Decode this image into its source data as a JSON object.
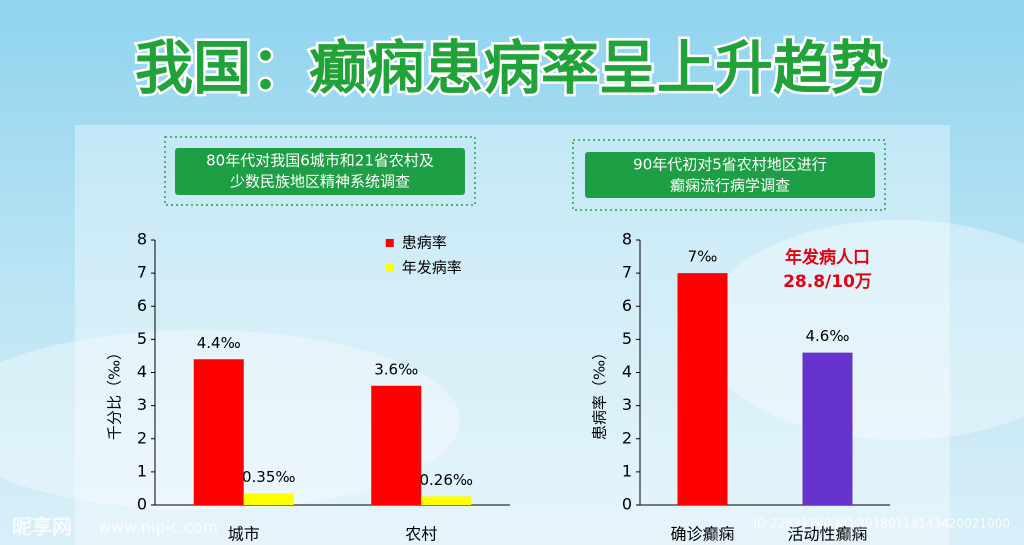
{
  "header": {
    "title": "我国：癫痫患病率呈上升趋势"
  },
  "watermark": [
    "昵享网",
    "www.nipic.com",
    "ID:22831740 NO:20180114143420021000"
  ],
  "chart_data": [
    {
      "type": "bar",
      "subtitle": [
        "80年代对我国6城市和21省农村及",
        "少数民族地区精神系统调查"
      ],
      "y_label": "千分比（‰）",
      "categories": [
        "城市",
        "农村"
      ],
      "series": [
        {
          "name": "患病率",
          "color": "#ff0000",
          "values": [
            4.4,
            3.6
          ],
          "value_labels": [
            "4.4‰",
            "3.6‰"
          ]
        },
        {
          "name": "年发病率",
          "color": "#ffff00",
          "values": [
            0.35,
            0.26
          ],
          "value_labels": [
            "0.35‰",
            "0.26‰"
          ]
        }
      ],
      "ylim": [
        0,
        8
      ],
      "yticks": [
        0,
        1,
        2,
        3,
        4,
        5,
        6,
        7,
        8
      ],
      "legend": "top-right"
    },
    {
      "type": "bar",
      "subtitle": [
        "90年代初对5省农村地区进行",
        "癫痫流行病学调查"
      ],
      "y_label": "患病率（‰）",
      "annotation": [
        "年发病人口",
        "28.8/10万"
      ],
      "categories": [
        "确诊癫痫",
        "活动性癫痫"
      ],
      "values": [
        7,
        4.6
      ],
      "value_labels": [
        "7‰",
        "4.6‰"
      ],
      "colors": [
        "#ff0000",
        "#6633cc"
      ],
      "ylim": [
        0,
        8
      ],
      "yticks": [
        0,
        1,
        2,
        3,
        4,
        5,
        6,
        7,
        8
      ]
    }
  ]
}
